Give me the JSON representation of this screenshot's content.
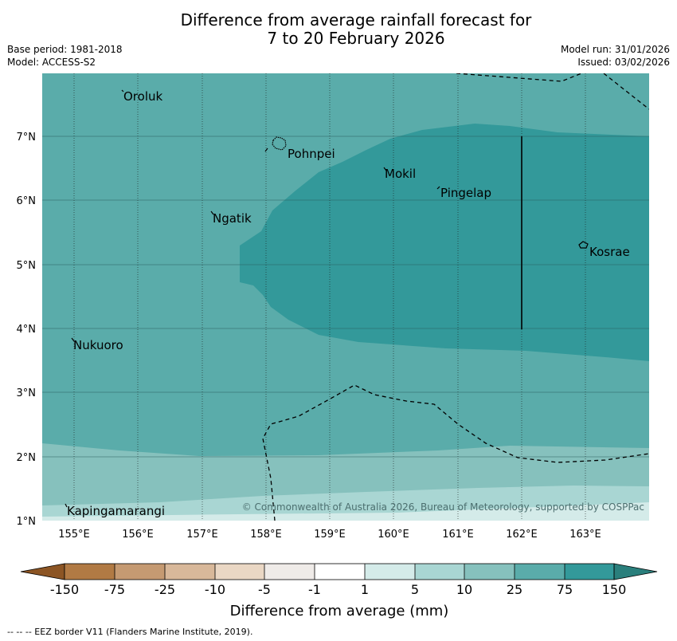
{
  "title": {
    "line1": "Difference from average rainfall forecast for",
    "line2": "7 to 20 February 2026"
  },
  "meta": {
    "base_period": "Base period: 1981-2018",
    "model": "Model: ACCESS-S2",
    "model_run": "Model run: 31/01/2026",
    "issued": "Issued: 03/02/2026"
  },
  "axes": {
    "lon_labels": [
      "155°E",
      "156°E",
      "157°E",
      "158°E",
      "159°E",
      "160°E",
      "161°E",
      "162°E",
      "163°E"
    ],
    "lat_labels": [
      "7°N",
      "6°N",
      "5°N",
      "4°N",
      "3°N",
      "2°N",
      "1°N"
    ]
  },
  "places": [
    {
      "name": "Oroluk"
    },
    {
      "name": "Pohnpei"
    },
    {
      "name": "Mokil"
    },
    {
      "name": "Pingelap"
    },
    {
      "name": "Ngatik"
    },
    {
      "name": "Kosrae"
    },
    {
      "name": "Nukuoro"
    },
    {
      "name": "Kapingamarangi"
    }
  ],
  "copyright": "© Commonwealth of Australia 2026, Bureau of Meteorology, supported by COSPPac",
  "colorbar": {
    "ticks": [
      "-150",
      "-75",
      "-25",
      "-10",
      "-5",
      "-1",
      "1",
      "5",
      "10",
      "25",
      "75",
      "150"
    ],
    "label": "Difference from average (mm)",
    "colors": [
      "#8c5524",
      "#b17a44",
      "#c59a72",
      "#d8b89a",
      "#ead7c4",
      "#efebe8",
      "#ffffff",
      "#d4ebe9",
      "#a9d6d3",
      "#86c1bd",
      "#5aacaa",
      "#33999a",
      "#2a7f7c"
    ]
  },
  "footer": "--  --  -- EEZ border V11 (Flanders Marine Institute, 2019)."
}
